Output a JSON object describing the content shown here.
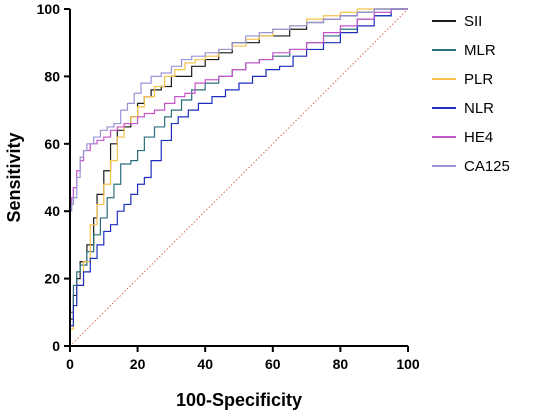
{
  "chart_data": {
    "type": "line",
    "title": "",
    "xlabel": "100-Specificity",
    "ylabel": "Sensitivity",
    "xlim": [
      0,
      100
    ],
    "ylim": [
      0,
      100
    ],
    "xticks": [
      0,
      20,
      40,
      60,
      80,
      100
    ],
    "yticks": [
      0,
      20,
      40,
      60,
      80,
      100
    ],
    "grid": false,
    "legend_position": "right",
    "reference_line": {
      "x": [
        0,
        100
      ],
      "y": [
        0,
        100
      ],
      "color": "#e06a5a",
      "style": "dotted"
    },
    "series": [
      {
        "name": "SII",
        "color": "#1a1a1a",
        "points": [
          [
            0,
            0
          ],
          [
            1,
            8
          ],
          [
            2,
            15
          ],
          [
            3,
            20
          ],
          [
            5,
            25
          ],
          [
            7,
            30
          ],
          [
            8,
            38
          ],
          [
            10,
            45
          ],
          [
            12,
            52
          ],
          [
            14,
            60
          ],
          [
            16,
            64
          ],
          [
            18,
            65
          ],
          [
            20,
            68
          ],
          [
            22,
            72
          ],
          [
            24,
            74
          ],
          [
            27,
            76
          ],
          [
            30,
            77
          ],
          [
            33,
            80
          ],
          [
            36,
            80
          ],
          [
            40,
            83
          ],
          [
            44,
            85
          ],
          [
            48,
            87
          ],
          [
            52,
            90
          ],
          [
            56,
            90
          ],
          [
            60,
            92
          ],
          [
            65,
            92
          ],
          [
            70,
            94
          ],
          [
            75,
            96
          ],
          [
            80,
            97
          ],
          [
            85,
            98
          ],
          [
            90,
            99
          ],
          [
            95,
            100
          ],
          [
            100,
            100
          ]
        ]
      },
      {
        "name": "MLR",
        "color": "#2b6f7f",
        "points": [
          [
            0,
            0
          ],
          [
            1,
            10
          ],
          [
            2,
            18
          ],
          [
            3,
            22
          ],
          [
            5,
            24
          ],
          [
            7,
            28
          ],
          [
            9,
            33
          ],
          [
            11,
            38
          ],
          [
            13,
            44
          ],
          [
            15,
            48
          ],
          [
            18,
            54
          ],
          [
            20,
            55
          ],
          [
            22,
            58
          ],
          [
            25,
            62
          ],
          [
            28,
            65
          ],
          [
            30,
            68
          ],
          [
            33,
            70
          ],
          [
            36,
            73
          ],
          [
            40,
            76
          ],
          [
            44,
            78
          ],
          [
            48,
            80
          ],
          [
            52,
            82
          ],
          [
            56,
            84
          ],
          [
            60,
            85
          ],
          [
            65,
            86
          ],
          [
            70,
            88
          ],
          [
            75,
            90
          ],
          [
            80,
            92
          ],
          [
            85,
            94
          ],
          [
            90,
            97
          ],
          [
            95,
            98
          ],
          [
            100,
            100
          ]
        ]
      },
      {
        "name": "PLR",
        "color": "#f5c24a",
        "points": [
          [
            0,
            0
          ],
          [
            1,
            5
          ],
          [
            2,
            12
          ],
          [
            4,
            18
          ],
          [
            6,
            25
          ],
          [
            8,
            36
          ],
          [
            10,
            42
          ],
          [
            12,
            48
          ],
          [
            14,
            55
          ],
          [
            16,
            62
          ],
          [
            18,
            66
          ],
          [
            20,
            68
          ],
          [
            22,
            71
          ],
          [
            25,
            74
          ],
          [
            28,
            77
          ],
          [
            31,
            80
          ],
          [
            34,
            82
          ],
          [
            37,
            84
          ],
          [
            40,
            85
          ],
          [
            44,
            86
          ],
          [
            48,
            88
          ],
          [
            52,
            89
          ],
          [
            56,
            91
          ],
          [
            60,
            92
          ],
          [
            65,
            94
          ],
          [
            70,
            95
          ],
          [
            75,
            97
          ],
          [
            80,
            98
          ],
          [
            85,
            99
          ],
          [
            90,
            100
          ],
          [
            95,
            100
          ],
          [
            100,
            100
          ]
        ]
      },
      {
        "name": "NLR",
        "color": "#1c2fbf",
        "points": [
          [
            0,
            0
          ],
          [
            1,
            6
          ],
          [
            2,
            12
          ],
          [
            4,
            18
          ],
          [
            6,
            22
          ],
          [
            8,
            26
          ],
          [
            10,
            30
          ],
          [
            12,
            34
          ],
          [
            14,
            36
          ],
          [
            16,
            40
          ],
          [
            18,
            42
          ],
          [
            20,
            45
          ],
          [
            22,
            48
          ],
          [
            24,
            50
          ],
          [
            27,
            55
          ],
          [
            30,
            61
          ],
          [
            32,
            66
          ],
          [
            35,
            68
          ],
          [
            38,
            70
          ],
          [
            42,
            72
          ],
          [
            46,
            74
          ],
          [
            50,
            76
          ],
          [
            54,
            78
          ],
          [
            58,
            80
          ],
          [
            62,
            82
          ],
          [
            66,
            83
          ],
          [
            70,
            86
          ],
          [
            75,
            88
          ],
          [
            80,
            90
          ],
          [
            85,
            93
          ],
          [
            90,
            95
          ],
          [
            95,
            98
          ],
          [
            100,
            100
          ]
        ]
      },
      {
        "name": "HE4",
        "color": "#c655c9",
        "points": [
          [
            0,
            0
          ],
          [
            0.5,
            42
          ],
          [
            1,
            44
          ],
          [
            2,
            47
          ],
          [
            3,
            52
          ],
          [
            4,
            55
          ],
          [
            6,
            58
          ],
          [
            8,
            60
          ],
          [
            10,
            61
          ],
          [
            12,
            62
          ],
          [
            14,
            64
          ],
          [
            16,
            65
          ],
          [
            18,
            66
          ],
          [
            20,
            66
          ],
          [
            22,
            68
          ],
          [
            25,
            69
          ],
          [
            28,
            70
          ],
          [
            31,
            72
          ],
          [
            34,
            74
          ],
          [
            37,
            75
          ],
          [
            40,
            78
          ],
          [
            44,
            79
          ],
          [
            48,
            80
          ],
          [
            52,
            82
          ],
          [
            56,
            84
          ],
          [
            60,
            85
          ],
          [
            65,
            87
          ],
          [
            70,
            88
          ],
          [
            75,
            90
          ],
          [
            80,
            93
          ],
          [
            85,
            95
          ],
          [
            90,
            97
          ],
          [
            95,
            99
          ],
          [
            100,
            100
          ]
        ]
      },
      {
        "name": "CA125",
        "color": "#9a93d6",
        "points": [
          [
            0,
            0
          ],
          [
            0.5,
            40
          ],
          [
            1,
            42
          ],
          [
            2,
            44
          ],
          [
            3,
            50
          ],
          [
            4,
            56
          ],
          [
            5,
            58
          ],
          [
            7,
            60
          ],
          [
            9,
            62
          ],
          [
            11,
            64
          ],
          [
            13,
            65
          ],
          [
            15,
            66
          ],
          [
            17,
            70
          ],
          [
            19,
            72
          ],
          [
            21,
            75
          ],
          [
            24,
            78
          ],
          [
            27,
            80
          ],
          [
            30,
            81
          ],
          [
            33,
            83
          ],
          [
            36,
            85
          ],
          [
            40,
            86
          ],
          [
            44,
            87
          ],
          [
            48,
            88
          ],
          [
            52,
            90
          ],
          [
            56,
            92
          ],
          [
            60,
            93
          ],
          [
            65,
            94
          ],
          [
            70,
            95
          ],
          [
            75,
            96
          ],
          [
            80,
            97
          ],
          [
            85,
            98
          ],
          [
            90,
            99
          ],
          [
            95,
            100
          ],
          [
            100,
            100
          ]
        ]
      }
    ]
  }
}
